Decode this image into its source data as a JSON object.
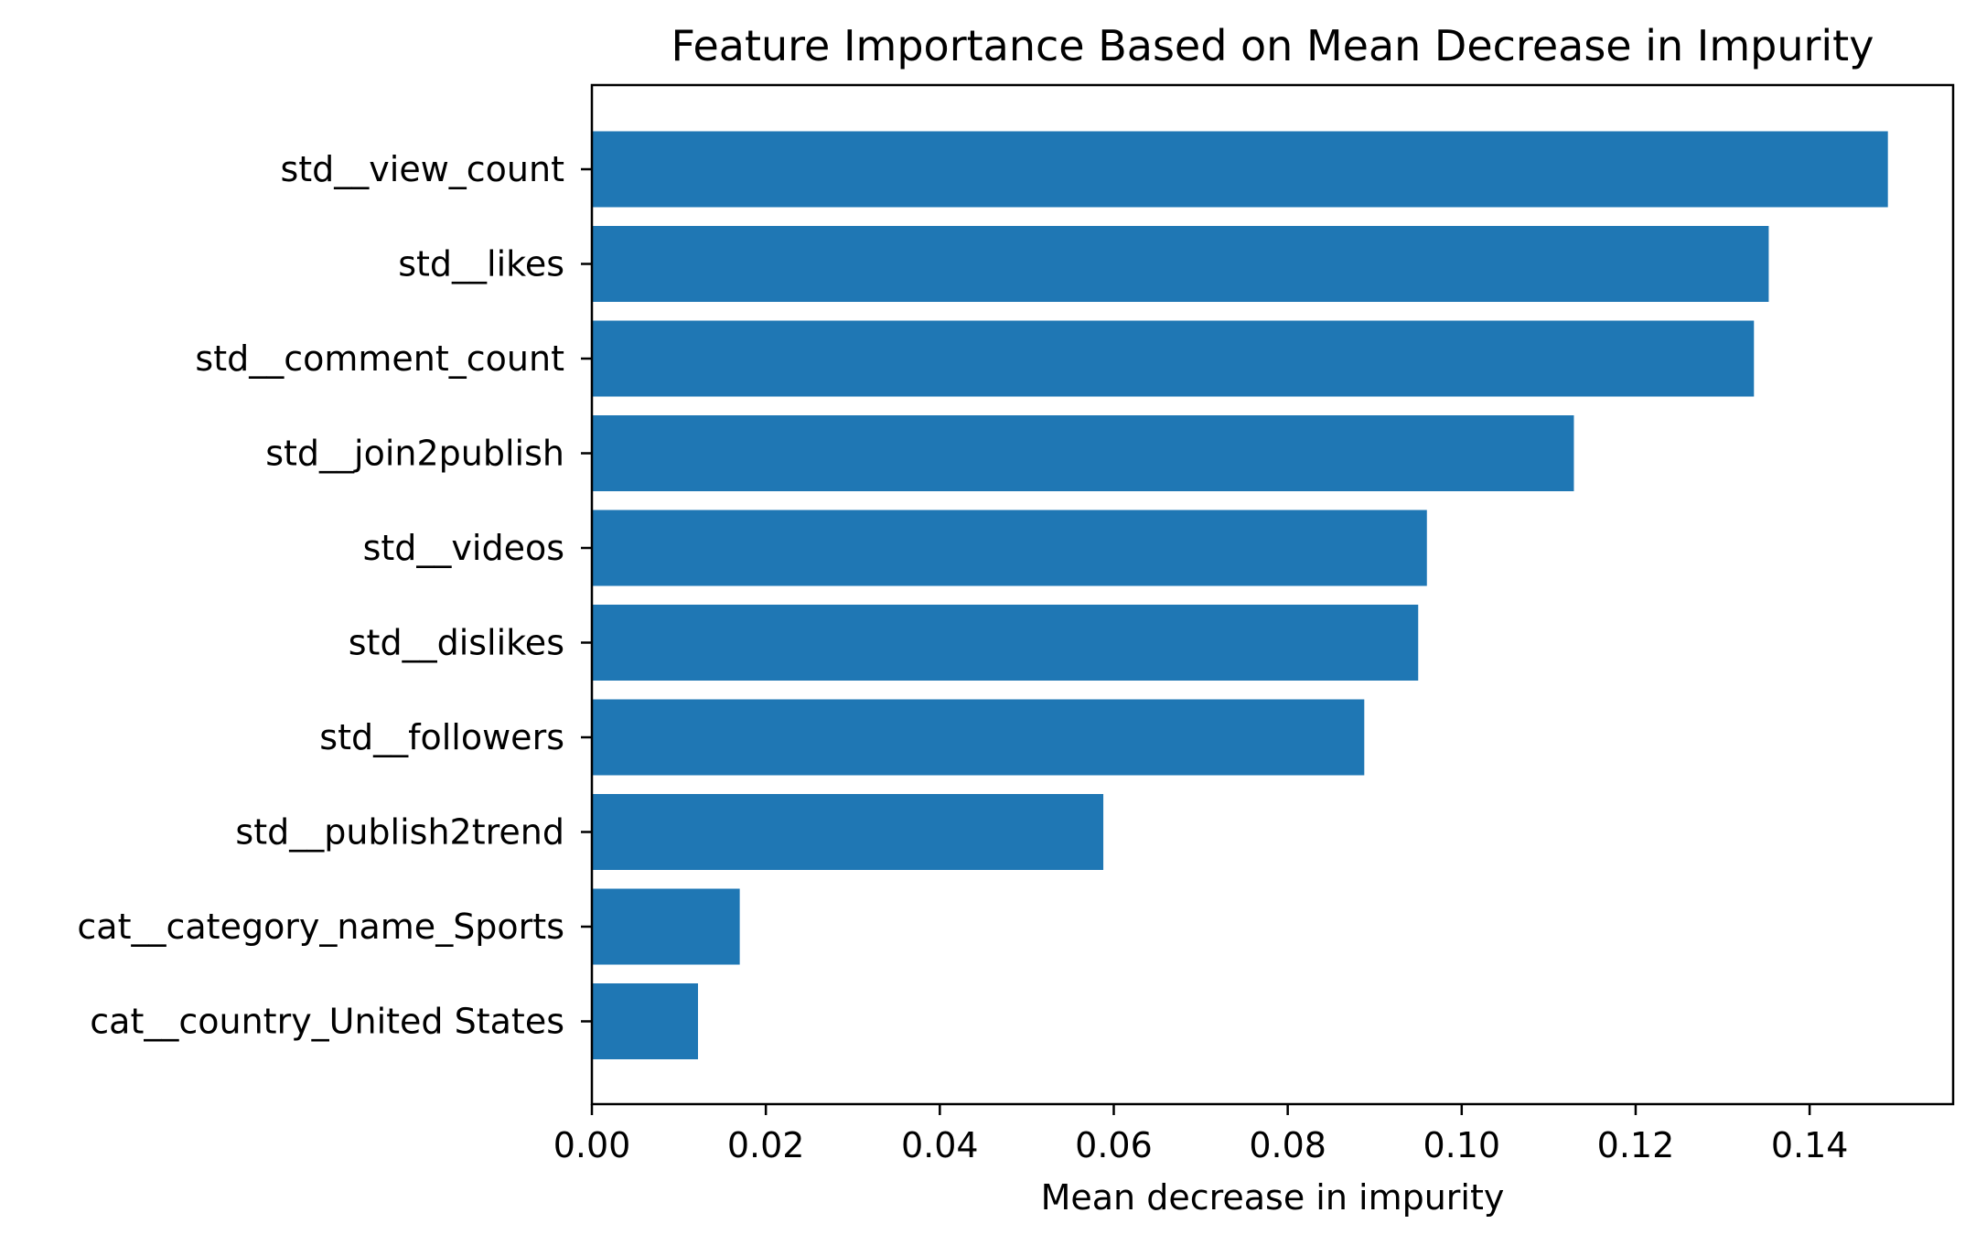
{
  "chart_data": {
    "type": "bar",
    "orientation": "horizontal",
    "title": "Feature Importance Based on Mean Decrease in Impurity",
    "xlabel": "Mean decrease in impurity",
    "ylabel": "",
    "categories": [
      "std__view_count",
      "std__likes",
      "std__comment_count",
      "std__join2publish",
      "std__videos",
      "std__dislikes",
      "std__followers",
      "std__publish2trend",
      "cat__category_name_Sports",
      "cat__country_United States"
    ],
    "values": [
      0.149,
      0.1353,
      0.1336,
      0.1129,
      0.096,
      0.095,
      0.0888,
      0.0588,
      0.017,
      0.0122
    ],
    "xlim": [
      0,
      0.1565
    ],
    "xticks": [
      "0.00",
      "0.02",
      "0.04",
      "0.06",
      "0.08",
      "0.10",
      "0.12",
      "0.14"
    ],
    "xtick_values": [
      0,
      0.02,
      0.04,
      0.06,
      0.08,
      0.1,
      0.12,
      0.14
    ],
    "grid": false,
    "bar_color": "#1f77b4"
  }
}
